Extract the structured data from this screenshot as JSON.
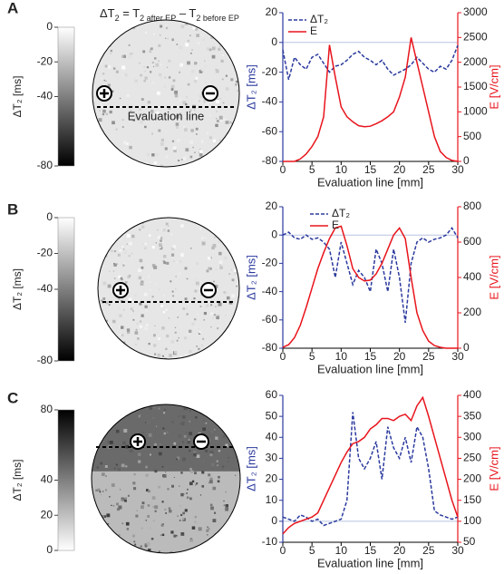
{
  "figure_title": [
    "ΔT",
    "2",
    " = T",
    "2 after EP",
    " – T",
    "2 before EP"
  ],
  "chart_data": [
    {
      "type": "line",
      "panel": "A",
      "annotation": "Evaluation line",
      "colorbar": {
        "label": "ΔT₂ [ms]",
        "lim": [
          -80,
          0
        ],
        "ticks": [
          0,
          -20,
          -40,
          -80
        ],
        "colors": [
          "#000000",
          "#ffffff"
        ]
      },
      "xlabel": "Evaluation line [mm]",
      "ylabel": "ΔT₂ [ms]",
      "y2label": "E [V/cm]",
      "xlim": [
        0,
        30
      ],
      "xticks": [
        0,
        5,
        10,
        15,
        20,
        25,
        30
      ],
      "ylim": [
        -80,
        20
      ],
      "yticks": [
        -80,
        -60,
        -40,
        -20,
        0,
        20
      ],
      "y2lim": [
        0,
        3000
      ],
      "y2ticks": [
        0,
        500,
        1000,
        1500,
        2000,
        2500,
        3000
      ],
      "reference_line": 0,
      "legend": "upper left",
      "x": [
        0,
        1,
        2,
        3,
        4,
        5,
        6,
        7,
        8,
        9,
        10,
        11,
        12,
        13,
        14,
        15,
        16,
        17,
        18,
        19,
        20,
        21,
        22,
        23,
        24,
        25,
        26,
        27,
        28,
        29,
        30
      ],
      "series": [
        {
          "name": "ΔT₂",
          "color": "#2b3a9e",
          "style": "dashed",
          "values": [
            -5,
            -25,
            -10,
            -15,
            -18,
            -10,
            -8,
            -14,
            -20,
            -16,
            -15,
            -12,
            -8,
            -6,
            -10,
            -12,
            -15,
            -12,
            -18,
            -22,
            -20,
            -18,
            -15,
            -10,
            -14,
            -18,
            -20,
            -16,
            -18,
            -12,
            -2
          ]
        },
        {
          "name": "E",
          "color": "#e8141c",
          "style": "solid",
          "axis": "y2",
          "values": [
            0,
            0,
            0,
            50,
            150,
            300,
            500,
            900,
            2350,
            1700,
            1100,
            900,
            800,
            720,
            700,
            710,
            760,
            820,
            900,
            1000,
            1300,
            1700,
            2500,
            2000,
            1500,
            1000,
            500,
            200,
            80,
            20,
            0
          ]
        }
      ]
    },
    {
      "type": "line",
      "panel": "B",
      "colorbar": {
        "label": "ΔT₂ [ms]",
        "lim": [
          -80,
          0
        ],
        "ticks": [
          0,
          -20,
          -40,
          -80
        ],
        "colors": [
          "#000000",
          "#ffffff"
        ]
      },
      "xlabel": "Evaluation line [mm]",
      "ylabel": "ΔT₂ [ms]",
      "y2label": "E [V/cm]",
      "xlim": [
        0,
        30
      ],
      "xticks": [
        0,
        5,
        10,
        15,
        20,
        25,
        30
      ],
      "ylim": [
        -80,
        20
      ],
      "yticks": [
        -80,
        -60,
        -40,
        -20,
        0,
        20
      ],
      "y2lim": [
        0,
        800
      ],
      "y2ticks": [
        0,
        200,
        400,
        600,
        800
      ],
      "reference_line": 0,
      "legend": "upper center",
      "x": [
        0,
        1,
        2,
        3,
        4,
        5,
        6,
        7,
        8,
        9,
        10,
        11,
        12,
        13,
        14,
        15,
        16,
        17,
        18,
        19,
        20,
        21,
        22,
        23,
        24,
        25,
        26,
        27,
        28,
        29,
        30
      ],
      "series": [
        {
          "name": "ΔT₂",
          "color": "#2b3a9e",
          "style": "dashed",
          "values": [
            0,
            2,
            -2,
            -3,
            0,
            -3,
            -2,
            -5,
            -10,
            -30,
            -5,
            -20,
            -35,
            -25,
            -30,
            -40,
            -10,
            -20,
            -40,
            -10,
            -30,
            -62,
            -20,
            -5,
            -2,
            -5,
            -3,
            -2,
            0,
            5,
            -2
          ]
        },
        {
          "name": "E",
          "color": "#e8141c",
          "style": "solid",
          "axis": "y2",
          "values": [
            5,
            20,
            60,
            130,
            230,
            340,
            450,
            540,
            620,
            680,
            690,
            580,
            450,
            400,
            380,
            385,
            420,
            480,
            560,
            640,
            680,
            620,
            400,
            200,
            100,
            40,
            15,
            5,
            0,
            0,
            0
          ]
        }
      ]
    },
    {
      "type": "line",
      "panel": "C",
      "colorbar": {
        "label": "ΔT₂ [ms]",
        "lim": [
          0,
          80
        ],
        "ticks": [
          0,
          20,
          40,
          80
        ],
        "colors": [
          "#ffffff",
          "#000000"
        ]
      },
      "xlabel": "Evaluation line [mm]",
      "ylabel": "ΔT₂ [ms]",
      "y2label": "E [V/cm]",
      "xlim": [
        0,
        30
      ],
      "xticks": [
        0,
        5,
        10,
        15,
        20,
        25,
        30
      ],
      "ylim": [
        -10,
        60
      ],
      "yticks": [
        -10,
        0,
        10,
        20,
        30,
        40,
        50,
        60
      ],
      "y2lim": [
        50,
        400
      ],
      "y2ticks": [
        50,
        100,
        150,
        200,
        250,
        300,
        350,
        400
      ],
      "reference_line": 0,
      "x": [
        0,
        1,
        2,
        3,
        4,
        5,
        6,
        7,
        8,
        9,
        10,
        11,
        12,
        13,
        14,
        15,
        16,
        17,
        18,
        19,
        20,
        21,
        22,
        23,
        24,
        25,
        26,
        27,
        28,
        29,
        30
      ],
      "series": [
        {
          "color": "#2b3a9e",
          "style": "dashed",
          "values": [
            2,
            1,
            0,
            3,
            2,
            0,
            1,
            -2,
            -1,
            0,
            1,
            10,
            52,
            30,
            25,
            30,
            38,
            20,
            45,
            35,
            30,
            40,
            28,
            45,
            40,
            25,
            5,
            3,
            2,
            1,
            2
          ]
        },
        {
          "color": "#e8141c",
          "style": "solid",
          "axis": "y2",
          "values": [
            70,
            85,
            95,
            100,
            105,
            110,
            120,
            150,
            180,
            210,
            240,
            265,
            285,
            290,
            300,
            320,
            330,
            345,
            345,
            340,
            350,
            355,
            340,
            375,
            395,
            350,
            300,
            250,
            200,
            150,
            110
          ]
        }
      ]
    }
  ]
}
